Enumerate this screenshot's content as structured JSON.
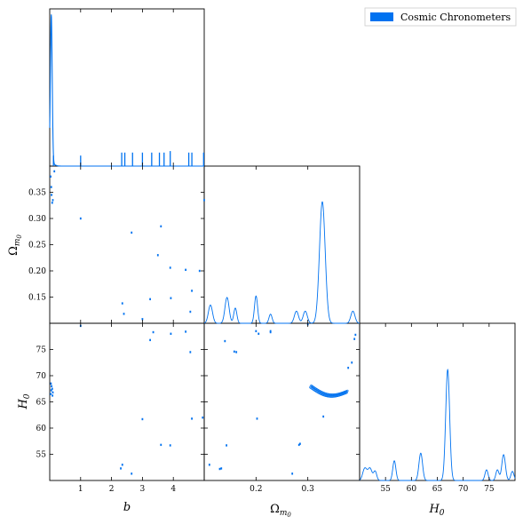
{
  "legend": {
    "label": "Cosmic Chronometers",
    "color": "#0072f0"
  },
  "chart_data": {
    "type": "corner",
    "series_color": "#0072f0",
    "parameters": [
      {
        "name": "b",
        "label": "b",
        "range": [
          0,
          5.0
        ],
        "ticks": [
          1,
          2,
          3,
          4
        ],
        "tick_labels": [
          "1",
          "2",
          "3",
          "4"
        ]
      },
      {
        "name": "Om0",
        "label": "Ω",
        "label_sub": "m",
        "label_subsub": "0",
        "range": [
          0.1,
          0.4
        ],
        "ticks": [
          0.15,
          0.2,
          0.25,
          0.3,
          0.35
        ],
        "tick_labels": [
          "0.15",
          "0.20",
          "0.25",
          "0.30",
          "0.35"
        ],
        "x_ticks": [
          0.2,
          0.3
        ],
        "x_tick_labels": [
          "0.2",
          "0.3"
        ]
      },
      {
        "name": "H0",
        "label": "H",
        "label_sub": "0",
        "range": [
          50,
          80
        ],
        "ticks": [
          55,
          60,
          65,
          70,
          75
        ],
        "tick_labels": [
          "55",
          "60",
          "65",
          "70",
          "75"
        ],
        "x_ticks": [
          55,
          60,
          65,
          70,
          75
        ],
        "x_tick_labels": [
          "55",
          "60",
          "65",
          "70",
          "75"
        ]
      }
    ],
    "marginal_b": {
      "main_peak": {
        "center": 0.05,
        "height": 1.0,
        "width": 0.03
      },
      "spikes": [
        {
          "x": 0.12,
          "h": 0.07
        },
        {
          "x": 1.0,
          "h": 0.07
        },
        {
          "x": 2.33,
          "h": 0.09
        },
        {
          "x": 2.43,
          "h": 0.09
        },
        {
          "x": 2.68,
          "h": 0.09
        },
        {
          "x": 3.0,
          "h": 0.09
        },
        {
          "x": 3.3,
          "h": 0.09
        },
        {
          "x": 3.55,
          "h": 0.09
        },
        {
          "x": 3.7,
          "h": 0.09
        },
        {
          "x": 3.9,
          "h": 0.1
        },
        {
          "x": 4.5,
          "h": 0.09
        },
        {
          "x": 4.6,
          "h": 0.09
        },
        {
          "x": 4.98,
          "h": 0.09
        }
      ]
    },
    "marginal_Om0": {
      "peaks": [
        {
          "center": 0.112,
          "height": 0.12,
          "width": 0.004
        },
        {
          "center": 0.144,
          "height": 0.17,
          "width": 0.004
        },
        {
          "center": 0.16,
          "height": 0.1,
          "width": 0.003
        },
        {
          "center": 0.2,
          "height": 0.18,
          "width": 0.003
        },
        {
          "center": 0.228,
          "height": 0.06,
          "width": 0.003
        },
        {
          "center": 0.278,
          "height": 0.08,
          "width": 0.004
        },
        {
          "center": 0.295,
          "height": 0.08,
          "width": 0.004
        },
        {
          "center": 0.328,
          "height": 0.8,
          "width": 0.0055
        },
        {
          "center": 0.387,
          "height": 0.08,
          "width": 0.004
        }
      ]
    },
    "marginal_H0": {
      "peaks": [
        {
          "center": 51.0,
          "height": 0.08,
          "width": 0.4
        },
        {
          "center": 52.0,
          "height": 0.08,
          "width": 0.4
        },
        {
          "center": 53.0,
          "height": 0.06,
          "width": 0.3
        },
        {
          "center": 56.7,
          "height": 0.13,
          "width": 0.3
        },
        {
          "center": 61.8,
          "height": 0.18,
          "width": 0.35
        },
        {
          "center": 67.0,
          "height": 0.73,
          "width": 0.38
        },
        {
          "center": 74.5,
          "height": 0.07,
          "width": 0.3
        },
        {
          "center": 76.6,
          "height": 0.07,
          "width": 0.3
        },
        {
          "center": 77.8,
          "height": 0.17,
          "width": 0.35
        },
        {
          "center": 79.5,
          "height": 0.06,
          "width": 0.3
        }
      ]
    },
    "scatter_b_Om0": [
      [
        0.03,
        0.38
      ],
      [
        0.05,
        0.36
      ],
      [
        0.06,
        0.345
      ],
      [
        0.08,
        0.33
      ],
      [
        0.1,
        0.335
      ],
      [
        0.15,
        0.39
      ],
      [
        1.0,
        0.3
      ],
      [
        2.35,
        0.138
      ],
      [
        2.4,
        0.118
      ],
      [
        2.65,
        0.273
      ],
      [
        3.0,
        0.108
      ],
      [
        3.25,
        0.146
      ],
      [
        3.5,
        0.23
      ],
      [
        3.6,
        0.285
      ],
      [
        3.9,
        0.206
      ],
      [
        3.92,
        0.148
      ],
      [
        4.4,
        0.202
      ],
      [
        4.55,
        0.122
      ],
      [
        4.6,
        0.162
      ],
      [
        4.85,
        0.2
      ],
      [
        5.0,
        0.335
      ]
    ],
    "scatter_b_H0": [
      [
        0.03,
        66.5
      ],
      [
        0.05,
        67.2
      ],
      [
        0.06,
        68.0
      ],
      [
        0.08,
        67.5
      ],
      [
        0.1,
        66.8
      ],
      [
        0.04,
        68.5
      ],
      [
        0.09,
        66.2
      ],
      [
        1.0,
        79.5
      ],
      [
        2.35,
        53.0
      ],
      [
        2.3,
        52.3
      ],
      [
        2.65,
        51.3
      ],
      [
        3.0,
        61.7
      ],
      [
        3.25,
        76.8
      ],
      [
        3.35,
        78.3
      ],
      [
        3.6,
        56.8
      ],
      [
        3.9,
        56.7
      ],
      [
        3.92,
        78.0
      ],
      [
        4.4,
        78.4
      ],
      [
        4.55,
        74.5
      ],
      [
        4.6,
        61.8
      ],
      [
        4.95,
        62.0
      ]
    ],
    "scatter_Om0_H0": {
      "points": [
        [
          0.11,
          53.0
        ],
        [
          0.13,
          52.2
        ],
        [
          0.133,
          52.3
        ],
        [
          0.14,
          76.6
        ],
        [
          0.143,
          56.7
        ],
        [
          0.158,
          74.6
        ],
        [
          0.162,
          74.5
        ],
        [
          0.2,
          78.5
        ],
        [
          0.205,
          78.0
        ],
        [
          0.202,
          61.8
        ],
        [
          0.228,
          78.5
        ],
        [
          0.228,
          78.3
        ],
        [
          0.27,
          51.3
        ],
        [
          0.283,
          56.8
        ],
        [
          0.285,
          57.0
        ],
        [
          0.3,
          79.8
        ],
        [
          0.33,
          62.2
        ],
        [
          0.378,
          71.5
        ],
        [
          0.385,
          72.5
        ],
        [
          0.39,
          77.0
        ],
        [
          0.392,
          77.8
        ]
      ],
      "ring": {
        "x_start": 0.305,
        "x_end": 0.375,
        "y_start": 67.8,
        "y_end": 66.8
      }
    }
  }
}
